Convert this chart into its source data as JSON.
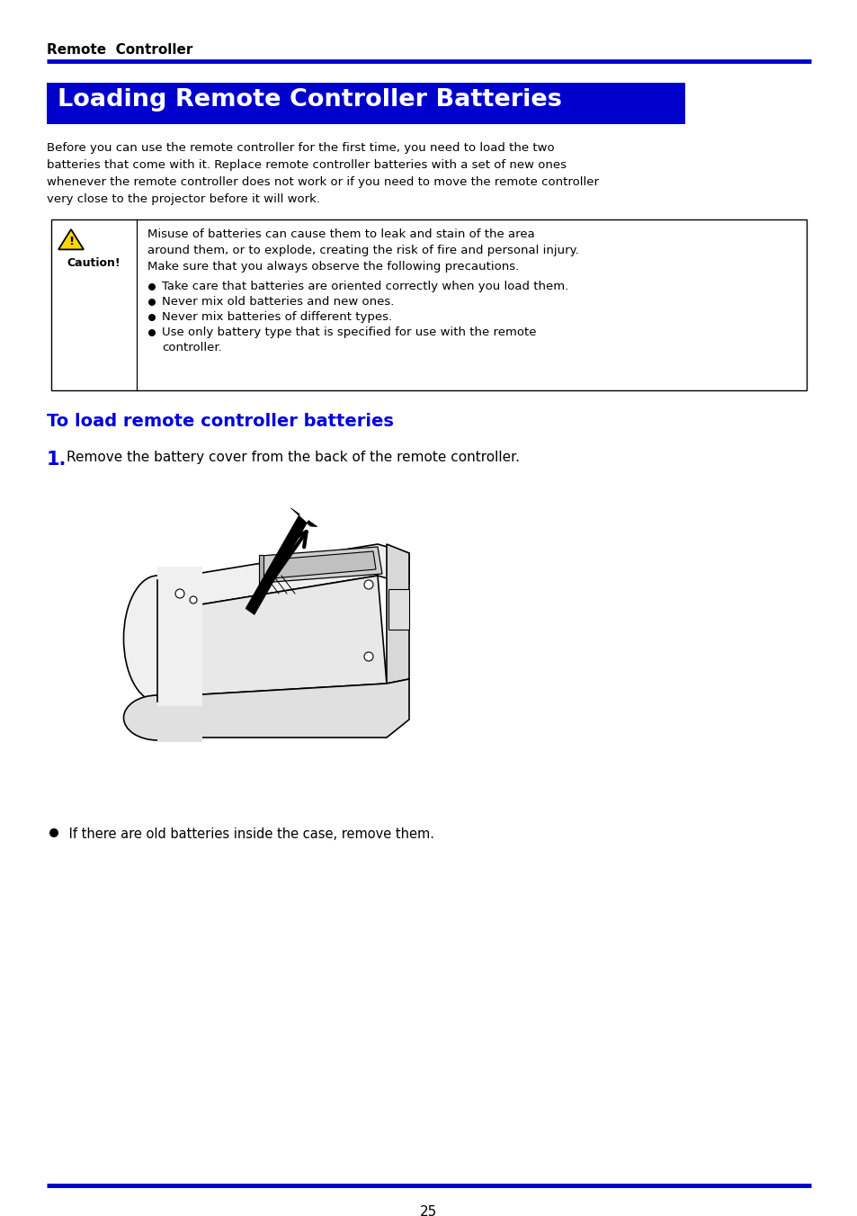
{
  "page_background": "#ffffff",
  "blue_line_color": "#0000cc",
  "header_text": "Remote  Controller",
  "title_bg_color": "#0000cc",
  "title_text": "Loading Remote Controller Batteries",
  "title_text_color": "#ffffff",
  "body_text_color": "#000000",
  "blue_heading_color": "#0000dd",
  "intro_lines": [
    "Before you can use the remote controller for the first time, you need to load the two",
    "batteries that come with it. Replace remote controller batteries with a set of new ones",
    "whenever the remote controller does not work or if you need to move the remote controller",
    "very close to the projector before it will work."
  ],
  "caution_text_lines": [
    "Misuse of batteries can cause them to leak and stain of the area",
    "around them, or to explode, creating the risk of fire and personal injury.",
    "Make sure that you always observe the following precautions."
  ],
  "caution_bullets": [
    "Take care that batteries are oriented correctly when you load them.",
    "Never mix old batteries and new ones.",
    "Never mix batteries of different types.",
    "Use only battery type that is specified for use with the remote",
    "controller."
  ],
  "caution_bullet_indent": [
    0,
    0,
    0,
    0,
    1
  ],
  "subheading": "To load remote controller batteries",
  "step1_text": "Remove the battery cover from the back of the remote controller.",
  "bullet_note": " If there are old batteries inside the case, remove them.",
  "footer_page": "25"
}
